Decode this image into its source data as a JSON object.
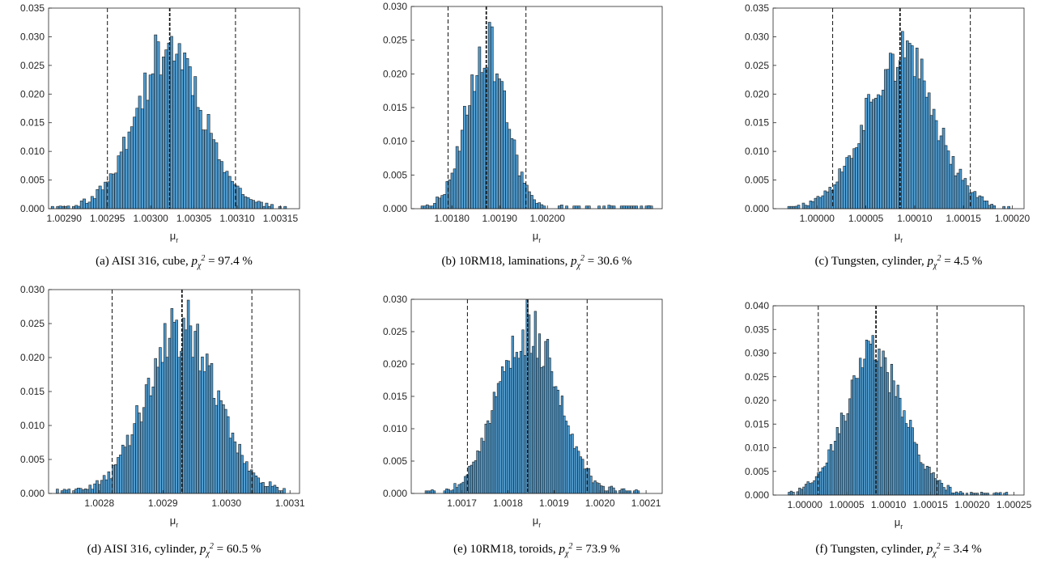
{
  "figure": {
    "bar_color": "#4f9bcf",
    "bar_edge": "#1a1a1a",
    "axis_color": "#262626"
  },
  "chart_data": [
    {
      "type": "histogram",
      "caption": {
        "label": "(a)",
        "text": "AISI 316, cube,",
        "stat_symbol": "p",
        "stat_subscript": "χ",
        "stat_superscript": "2",
        "stat_value": "= 97.4 %"
      },
      "xlabel": "μ",
      "xlabel_sub": "r",
      "xlim": [
        1.002882,
        1.003172
      ],
      "ylim": [
        0,
        0.035
      ],
      "xticks": [
        1.0029,
        1.00295,
        1.003,
        1.00305,
        1.0031,
        1.00315
      ],
      "xtick_labels": [
        "1.00290",
        "1.00295",
        "1.00300",
        "1.00305",
        "1.00310",
        "1.00315"
      ],
      "yticks": [
        0,
        0.005,
        0.01,
        0.015,
        0.02,
        0.025,
        0.03,
        0.035
      ],
      "ytick_labels": [
        "0.000",
        "0.005",
        "0.010",
        "0.015",
        "0.020",
        "0.025",
        "0.030",
        "0.035"
      ],
      "vlines": [
        1.00295,
        1.003022,
        1.003098
      ],
      "bins": {
        "mean": 1.003022,
        "sd": 3.85e-05,
        "peak": 0.0285,
        "n": 90,
        "range": [
          1.002885,
          1.00316
        ],
        "seed": 11
      }
    },
    {
      "type": "histogram",
      "caption": {
        "label": "(b)",
        "text": "10RM18, laminations,",
        "stat_symbol": "p",
        "stat_subscript": "χ",
        "stat_superscript": "2",
        "stat_value": "= 30.6 %"
      },
      "xlabel": "μ",
      "xlabel_sub": "r",
      "xlim": [
        1.001715,
        1.00224
      ],
      "ylim": [
        0,
        0.03
      ],
      "xticks": [
        1.0018,
        1.0019,
        1.002
      ],
      "xtick_labels": [
        "1.00180",
        "1.00190",
        "1.00200"
      ],
      "yticks": [
        0,
        0.005,
        0.01,
        0.015,
        0.02,
        0.025,
        0.03
      ],
      "ytick_labels": [
        "0.000",
        "0.005",
        "0.010",
        "0.015",
        "0.020",
        "0.025",
        "0.030"
      ],
      "vlines": [
        1.001792,
        1.001872,
        1.001955
      ],
      "bins": {
        "mean": 1.001872,
        "sd": 4.15e-05,
        "peak": 0.0245,
        "n": 95,
        "range": [
          1.001725,
          1.00222
        ],
        "seed": 23
      }
    },
    {
      "type": "histogram",
      "caption": {
        "label": "(c)",
        "text": "Tungsten, cylinder,",
        "stat_symbol": "p",
        "stat_subscript": "χ",
        "stat_superscript": "2",
        "stat_value": "= 4.5 %"
      },
      "xlabel": "μ",
      "xlabel_sub": "r",
      "xlim": [
        0.999955,
        1.000212
      ],
      "ylim": [
        0,
        0.035
      ],
      "xticks": [
        1.0,
        1.00005,
        1.0001,
        1.00015,
        1.0002
      ],
      "xtick_labels": [
        "1.00000",
        "1.00005",
        "1.00010",
        "1.00015",
        "1.00020"
      ],
      "yticks": [
        0,
        0.005,
        0.01,
        0.015,
        0.02,
        0.025,
        0.03,
        0.035
      ],
      "ytick_labels": [
        "0.000",
        "0.005",
        "0.010",
        "0.015",
        "0.020",
        "0.025",
        "0.030",
        "0.035"
      ],
      "vlines": [
        1.000016,
        1.000085,
        1.000157
      ],
      "bins": {
        "mean": 1.000085,
        "sd": 3.55e-05,
        "peak": 0.027,
        "n": 95,
        "range": [
          0.99997,
          1.000205
        ],
        "seed": 37
      }
    },
    {
      "type": "histogram",
      "caption": {
        "label": "(d)",
        "text": "AISI 316, cylinder,",
        "stat_symbol": "p",
        "stat_subscript": "χ",
        "stat_superscript": "2",
        "stat_value": "= 60.5 %"
      },
      "xlabel": "μ",
      "xlabel_sub": "r",
      "xlim": [
        1.00272,
        1.003115
      ],
      "ylim": [
        0,
        0.03
      ],
      "xticks": [
        1.0028,
        1.0029,
        1.003,
        1.0031
      ],
      "xtick_labels": [
        "1.0028",
        "1.0029",
        "1.0030",
        "1.0031"
      ],
      "yticks": [
        0,
        0.005,
        0.01,
        0.015,
        0.02,
        0.025,
        0.03
      ],
      "ytick_labels": [
        "0.000",
        "0.005",
        "0.010",
        "0.015",
        "0.020",
        "0.025",
        "0.030"
      ],
      "vlines": [
        1.00282,
        1.00293,
        1.00304
      ],
      "bins": {
        "mean": 1.00293,
        "sd": 5.55e-05,
        "peak": 0.0245,
        "n": 100,
        "range": [
          1.002732,
          1.0031
        ],
        "seed": 41
      }
    },
    {
      "type": "histogram",
      "caption": {
        "label": "(e)",
        "text": "10RM18, toroids,",
        "stat_symbol": "p",
        "stat_subscript": "χ",
        "stat_superscript": "2",
        "stat_value": "= 73.9 %"
      },
      "xlabel": "μ",
      "xlabel_sub": "r",
      "xlim": [
        1.00159,
        1.002135
      ],
      "ylim": [
        0,
        0.03
      ],
      "xticks": [
        1.0017,
        1.0018,
        1.0019,
        1.002,
        1.0021
      ],
      "xtick_labels": [
        "1.0017",
        "1.0018",
        "1.0019",
        "1.0020",
        "1.0021"
      ],
      "yticks": [
        0,
        0.005,
        0.01,
        0.015,
        0.02,
        0.025,
        0.03
      ],
      "ytick_labels": [
        "0.000",
        "0.005",
        "0.010",
        "0.015",
        "0.020",
        "0.025",
        "0.030"
      ],
      "vlines": [
        1.001712,
        1.001843,
        1.001972
      ],
      "bins": {
        "mean": 1.001843,
        "sd": 6.5e-05,
        "peak": 0.0255,
        "n": 105,
        "range": [
          1.00162,
          1.00209
        ],
        "seed": 53
      }
    },
    {
      "type": "histogram",
      "caption": {
        "label": "(f)",
        "text": "Tungsten, cylinder,",
        "stat_symbol": "p",
        "stat_subscript": "χ",
        "stat_superscript": "2",
        "stat_value": "= 3.4 %"
      },
      "xlabel": "μ",
      "xlabel_sub": "r",
      "xlim": [
        0.999962,
        1.000262
      ],
      "ylim": [
        0,
        0.04
      ],
      "xticks": [
        1.0,
        1.00005,
        1.0001,
        1.00015,
        1.0002,
        1.00025
      ],
      "xtick_labels": [
        "1.00000",
        "1.00005",
        "1.00010",
        "1.00015",
        "1.00020",
        "1.00025"
      ],
      "yticks": [
        0,
        0.005,
        0.01,
        0.015,
        0.02,
        0.025,
        0.03,
        0.035,
        0.04
      ],
      "ytick_labels": [
        "0.000",
        "0.005",
        "0.010",
        "0.015",
        "0.020",
        "0.025",
        "0.030",
        "0.035",
        "0.040"
      ],
      "vlines": [
        1.000016,
        1.000085,
        1.000158
      ],
      "bins": {
        "mean": 1.000083,
        "sd": 3.55e-05,
        "peak": 0.029,
        "n": 110,
        "range": [
          0.99997,
          1.000245
        ],
        "seed": 67
      }
    }
  ]
}
